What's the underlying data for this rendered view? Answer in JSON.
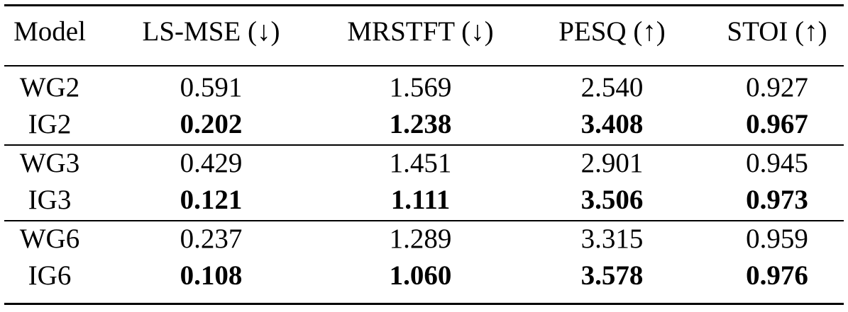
{
  "table": {
    "header": [
      "Model",
      "LS-MSE (↓)",
      "MRSTFT (↓)",
      "PESQ (↑)",
      "STOI (↑)"
    ],
    "groups": [
      [
        [
          "WG2",
          "0.591",
          "1.569",
          "2.540",
          "0.927"
        ],
        [
          "IG2",
          "0.202",
          "1.238",
          "3.408",
          "0.967"
        ]
      ],
      [
        [
          "WG3",
          "0.429",
          "1.451",
          "2.901",
          "0.945"
        ],
        [
          "IG3",
          "0.121",
          "1.111",
          "3.506",
          "0.973"
        ]
      ],
      [
        [
          "WG6",
          "0.237",
          "1.289",
          "3.315",
          "0.959"
        ],
        [
          "IG6",
          "0.108",
          "1.060",
          "3.578",
          "0.976"
        ]
      ]
    ]
  }
}
